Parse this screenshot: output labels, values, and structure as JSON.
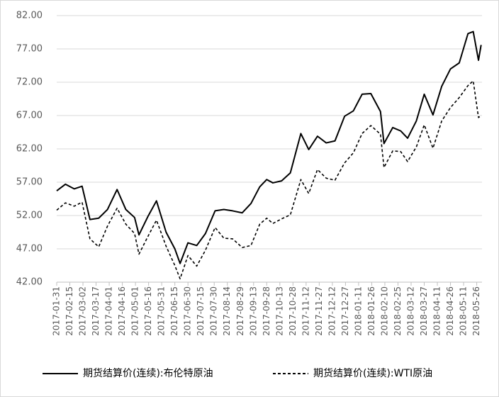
{
  "chart_data": {
    "type": "line",
    "x": [
      "2017-01-31",
      "2017-02-10",
      "2017-02-20",
      "2017-03-01",
      "2017-03-10",
      "2017-03-20",
      "2017-03-30",
      "2017-04-10",
      "2017-04-20",
      "2017-04-30",
      "2017-05-05",
      "2017-05-15",
      "2017-05-25",
      "2017-06-05",
      "2017-06-15",
      "2017-06-21",
      "2017-06-30",
      "2017-07-10",
      "2017-07-20",
      "2017-07-31",
      "2017-08-10",
      "2017-08-20",
      "2017-08-31",
      "2017-09-10",
      "2017-09-20",
      "2017-09-28",
      "2017-10-05",
      "2017-10-15",
      "2017-10-25",
      "2017-11-06",
      "2017-11-15",
      "2017-11-25",
      "2017-12-05",
      "2017-12-15",
      "2017-12-26",
      "2018-01-05",
      "2018-01-15",
      "2018-01-25",
      "2018-02-05",
      "2018-02-09",
      "2018-02-19",
      "2018-02-28",
      "2018-03-08",
      "2018-03-18",
      "2018-03-27",
      "2018-04-06",
      "2018-04-16",
      "2018-04-26",
      "2018-05-06",
      "2018-05-16",
      "2018-05-22",
      "2018-05-28",
      "2018-05-31"
    ],
    "series": [
      {
        "name": "期货结算价(连续):布伦特原油",
        "color": "#000000",
        "linestyle": "solid",
        "values": [
          55.7,
          56.7,
          56.0,
          56.4,
          51.4,
          51.6,
          52.9,
          55.9,
          52.9,
          51.7,
          49.1,
          51.8,
          54.2,
          49.5,
          47.0,
          44.8,
          47.9,
          47.5,
          49.3,
          52.7,
          52.9,
          52.7,
          52.4,
          53.8,
          56.3,
          57.4,
          56.9,
          57.2,
          58.4,
          64.3,
          61.9,
          63.9,
          62.9,
          63.2,
          66.9,
          67.7,
          70.2,
          70.3,
          67.6,
          62.8,
          65.2,
          64.7,
          63.6,
          66.2,
          70.2,
          67.1,
          71.4,
          74.0,
          74.9,
          79.3,
          79.6,
          75.3,
          77.6
        ]
      },
      {
        "name": "期货结算价(连续):WTI原油",
        "color": "#000000",
        "linestyle": "dashed",
        "values": [
          52.8,
          53.9,
          53.4,
          54.0,
          48.5,
          47.3,
          50.4,
          53.1,
          50.7,
          49.3,
          46.2,
          48.8,
          51.3,
          47.4,
          44.5,
          42.5,
          46.0,
          44.4,
          46.8,
          50.2,
          48.6,
          48.5,
          47.2,
          47.5,
          50.7,
          51.6,
          50.8,
          51.5,
          52.1,
          57.4,
          55.3,
          58.9,
          57.6,
          57.3,
          59.9,
          61.4,
          64.3,
          65.5,
          64.2,
          59.2,
          61.7,
          61.6,
          60.1,
          62.3,
          65.6,
          62.1,
          66.2,
          68.2,
          69.7,
          71.5,
          72.2,
          66.7,
          67.0
        ]
      }
    ],
    "xlim": [
      "2017-01-31",
      "2018-06-01"
    ],
    "xticks": [
      "2017-01-31",
      "2017-02-15",
      "2017-03-02",
      "2017-03-17",
      "2017-04-01",
      "2017-04-16",
      "2017-05-01",
      "2017-05-16",
      "2017-05-31",
      "2017-06-15",
      "2017-06-30",
      "2017-07-15",
      "2017-07-30",
      "2017-08-14",
      "2017-08-29",
      "2017-09-13",
      "2017-09-28",
      "2017-10-13",
      "2017-10-28",
      "2017-11-12",
      "2017-11-27",
      "2017-12-12",
      "2017-12-27",
      "2018-01-11",
      "2018-01-26",
      "2018-02-10",
      "2018-02-25",
      "2018-03-12",
      "2018-03-27",
      "2018-04-11",
      "2018-04-26",
      "2018-05-11",
      "2018-05-26"
    ],
    "ylim": [
      42,
      82
    ],
    "yticks": [
      {
        "value": 42,
        "label": "42.00"
      },
      {
        "value": 47,
        "label": "47.00"
      },
      {
        "value": 52,
        "label": "52.00"
      },
      {
        "value": 57,
        "label": "57.00"
      },
      {
        "value": 62,
        "label": "62.00"
      },
      {
        "value": 67,
        "label": "67.00"
      },
      {
        "value": 72,
        "label": "72.00"
      },
      {
        "value": 77,
        "label": "77.00"
      },
      {
        "value": 82,
        "label": "82.00"
      }
    ],
    "grid": true,
    "legend": "bottom"
  }
}
